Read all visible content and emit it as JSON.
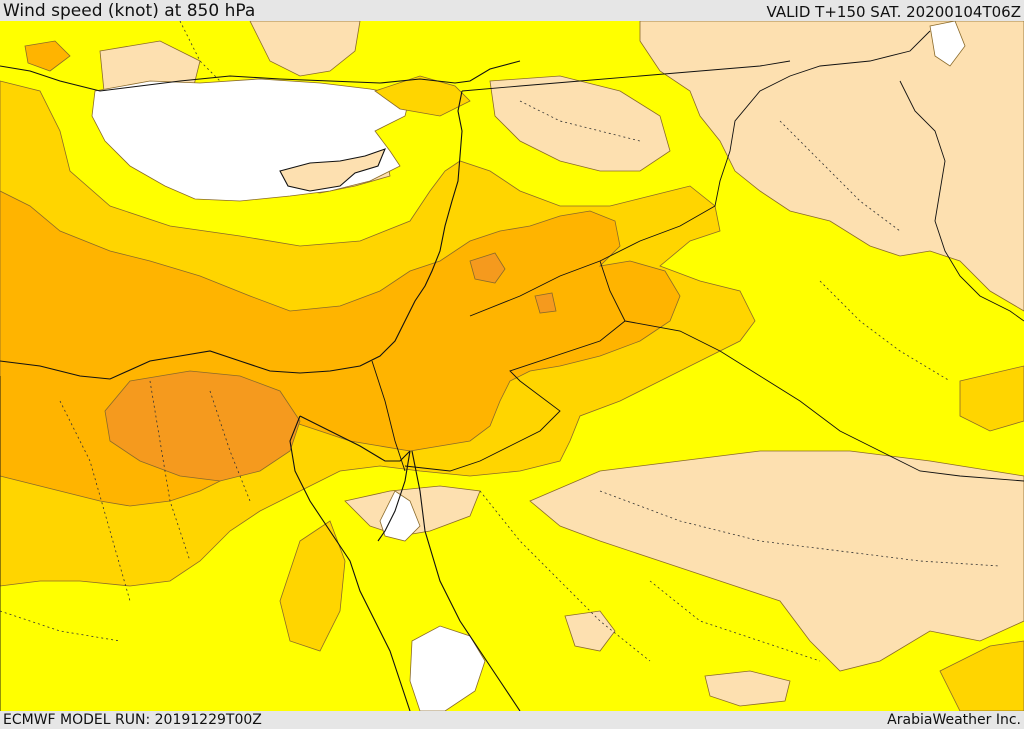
{
  "header": {
    "title": "Wind speed (knot) at 850 hPa",
    "valid": "VALID T+150 SAT. 20200104T06Z"
  },
  "footer": {
    "model_run": "ECMWF MODEL RUN: 20191229T00Z",
    "credit": "ArabiaWeather Inc."
  },
  "colors": {
    "calm": "#ffffff",
    "light": "#fde0b0",
    "moderate": "#ffff00",
    "fresh": "#ffd500",
    "strong": "#ffb400",
    "very_strong": "#f59a1e",
    "coast_line": "#111111",
    "contour_line": "#8a6a2a"
  }
}
